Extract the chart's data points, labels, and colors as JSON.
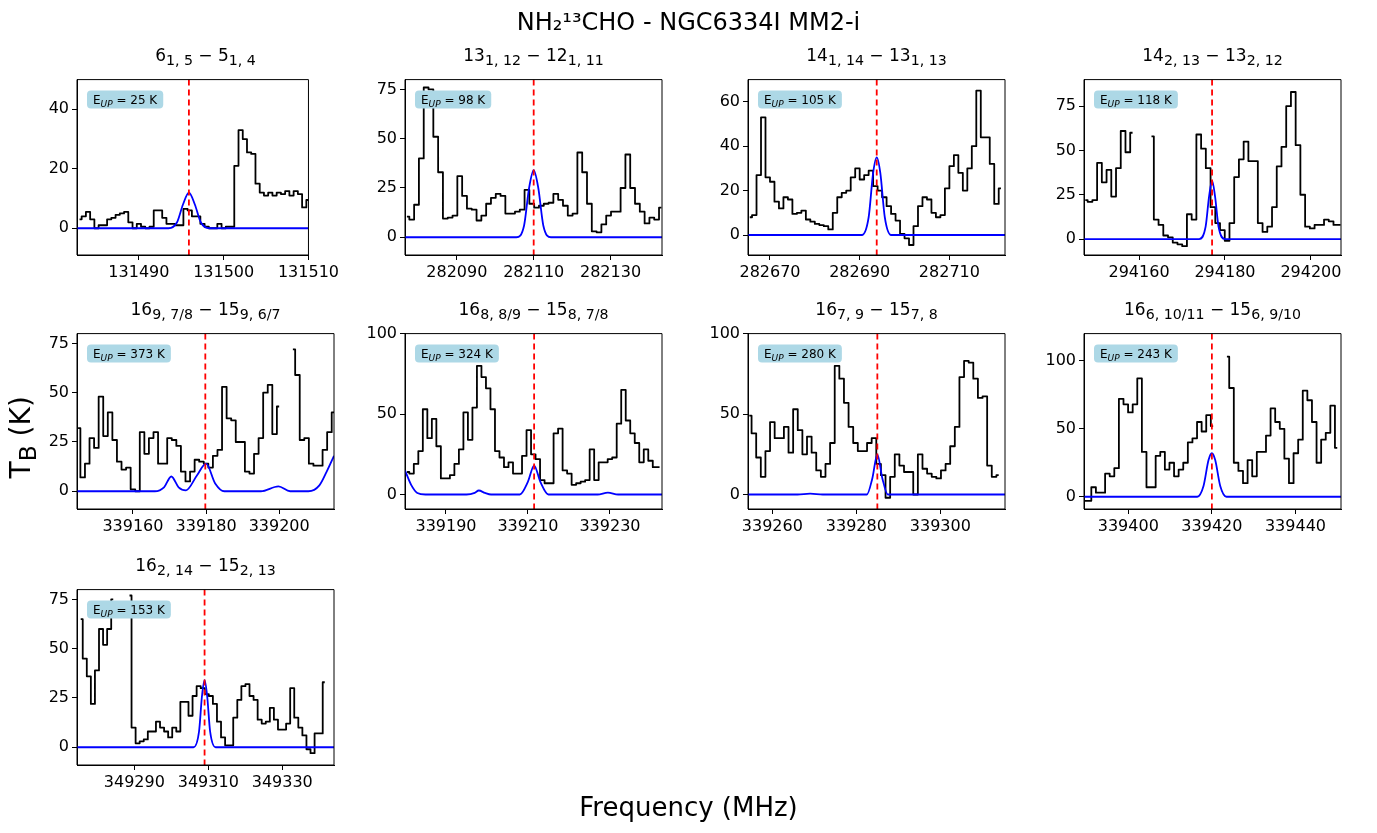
{
  "chart_data": [
    {
      "type": "step",
      "title": "6$_{1, 5}$ − 5$_{1, 4}$",
      "annotations": [
        "E$_{UP}$ = 25 K"
      ],
      "xlim": [
        131482.7,
        131510
      ],
      "ylim": [
        -9,
        50
      ],
      "xticks": [
        131490,
        131500,
        131510
      ],
      "yticks": [
        0,
        20,
        40
      ],
      "ref_lines": [
        {
          "axis": "x",
          "value": 131495.9,
          "color": "#ff0000",
          "line_style": "dashed"
        }
      ],
      "series": [
        {
          "type": "step",
          "color": "#000000",
          "x": [
            131483,
            131483.5,
            131484,
            131484.5,
            131485,
            131485.5,
            131486,
            131486.5,
            131487,
            131487.5,
            131488,
            131488.5,
            131489,
            131489.5,
            131490,
            131490.5,
            131491,
            131491.5,
            131492,
            131492.5,
            131493,
            131493.5,
            131494,
            131494.5,
            131495,
            131495.5,
            131496,
            131496.5,
            131497,
            131497.5,
            131498,
            131498.5,
            131499,
            131499.5,
            131500,
            131500.5,
            131501,
            131501.5,
            131502,
            131502.5,
            131503,
            131503.5,
            131504,
            131504.5,
            131505,
            131505.5,
            131506,
            131506.5,
            131507,
            131507.5,
            131508,
            131508.5,
            131509,
            131509.5,
            131510
          ],
          "values": [
            3,
            4,
            5.5,
            3,
            0,
            1,
            1,
            3,
            3.5,
            4.5,
            5,
            5.5,
            2,
            0,
            1.5,
            0.5,
            0,
            0.5,
            6,
            6,
            3.5,
            1.5,
            1.5,
            1,
            1,
            6.5,
            6,
            4,
            4,
            1.5,
            0.5,
            0,
            0,
            1.5,
            0,
            0.5,
            0.5,
            21,
            33,
            30,
            25.5,
            25,
            15,
            12,
            11,
            12,
            11,
            12,
            11.5,
            12.5,
            11,
            12.5,
            11.5,
            7,
            9.5
          ]
        },
        {
          "type": "line",
          "color": "#0000ff",
          "x": [
            131482.7,
            131493.5,
            131494.5,
            131495.2,
            131495.9,
            131496.6,
            131497.3,
            131498.3,
            131510
          ],
          "values": [
            0,
            0,
            2,
            8,
            12,
            8,
            2,
            0,
            0
          ]
        }
      ]
    },
    {
      "type": "step",
      "title": "13$_{1, 12}$ − 12$_{1, 11}$",
      "annotations": [
        "E$_{UP}$ = 98 K"
      ],
      "xlim": [
        282076.5,
        282143.4
      ],
      "ylim": [
        -9,
        80
      ],
      "xticks": [
        282090,
        282110,
        282130
      ],
      "yticks": [
        0,
        25,
        50,
        75
      ],
      "ref_lines": [
        {
          "axis": "x",
          "value": 282110,
          "color": "#ff0000",
          "line_style": "dashed"
        }
      ],
      "series": [
        {
          "type": "step",
          "color": "#000000",
          "x": [
            282077,
            282078.25,
            282079.5,
            282080.75,
            282082,
            282083.25,
            282084.5,
            282085.75,
            282087,
            282088.25,
            282089.5,
            282090.75,
            282092,
            282093.25,
            282094.5,
            282095.75,
            282097,
            282098.25,
            282099.5,
            282100.75,
            282102,
            282103.25,
            282104.5,
            282105.75,
            282107,
            282108.25,
            282109.5,
            282110.75,
            282112,
            282113.25,
            282114.5,
            282115.75,
            282117,
            282118.25,
            282119.5,
            282120.75,
            282122,
            282123.25,
            282124.5,
            282125.75,
            282127,
            282128.25,
            282129.5,
            282130.75,
            282132,
            282133.25,
            282134.5,
            282135.75,
            282137,
            282138.25,
            282139.5,
            282140.75,
            282142,
            282143.25
          ],
          "values": [
            10.5,
            9,
            16.5,
            40,
            76,
            75,
            51,
            33,
            9.5,
            10,
            11,
            31,
            21,
            14.5,
            14,
            8.5,
            11,
            17,
            20,
            22,
            21,
            12,
            12,
            13,
            14,
            24,
            17,
            15,
            16,
            17,
            17.5,
            22,
            19,
            16,
            11,
            12,
            43,
            33,
            17,
            3,
            2.5,
            6.5,
            11,
            13,
            13,
            25,
            42,
            25,
            17,
            13,
            7,
            10,
            9,
            15
          ]
        },
        {
          "type": "line",
          "color": "#0000ff",
          "x": [
            282076.5,
            282105.5,
            282107.5,
            282108.8,
            282110,
            282111.2,
            282112.5,
            282114.5,
            282143.4
          ],
          "values": [
            0,
            0,
            6,
            25,
            34,
            25,
            6,
            0,
            0
          ]
        }
      ]
    },
    {
      "type": "step",
      "title": "14$_{1, 14}$ − 13$_{1, 13}$",
      "annotations": [
        "E$_{UP}$ = 105 K"
      ],
      "xlim": [
        282665.1,
        282722.4
      ],
      "ylim": [
        -9,
        70
      ],
      "xticks": [
        282670,
        282690,
        282710
      ],
      "yticks": [
        0,
        20,
        40,
        60
      ],
      "ref_lines": [
        {
          "axis": "x",
          "value": 282693.8,
          "color": "#ff0000",
          "line_style": "dashed"
        }
      ],
      "series": [
        {
          "type": "step",
          "color": "#000000",
          "x": [
            282665.5,
            282666.5,
            282667.5,
            282668.5,
            282669.5,
            282670.5,
            282671.5,
            282672.5,
            282673.5,
            282674.5,
            282675.5,
            282676.5,
            282677.5,
            282678.5,
            282679.5,
            282680.5,
            282681.5,
            282682.5,
            282683.5,
            282684.5,
            282685.5,
            282686.5,
            282687.5,
            282688.5,
            282689.5,
            282690.5,
            282691.5,
            282692.5,
            282693.5,
            282694.5,
            282695.5,
            282696.5,
            282697.5,
            282698.5,
            282699.5,
            282700.5,
            282701.5,
            282702.5,
            282703.5,
            282704.5,
            282705.5,
            282706.5,
            282707.5,
            282708.5,
            282709.5,
            282710.5,
            282711.5,
            282712.5,
            282713.5,
            282714.5,
            282715.5,
            282716.5,
            282717.5,
            282718.5,
            282719.5,
            282720.5,
            282721.5
          ],
          "values": [
            8,
            9,
            27,
            53,
            26,
            24,
            15,
            12,
            17,
            16,
            9.5,
            10,
            11,
            7,
            6,
            5,
            4.5,
            4,
            2.5,
            10,
            17,
            19,
            20,
            26,
            30,
            25,
            27,
            29,
            22,
            20,
            17,
            13,
            9.5,
            6.5,
            0.5,
            -1.5,
            -4.5,
            4,
            13,
            17,
            16,
            10,
            8,
            9,
            21,
            31,
            36,
            28,
            20,
            30,
            40,
            65,
            44,
            44,
            32,
            14,
            21
          ]
        },
        {
          "type": "line",
          "color": "#0000ff",
          "x": [
            282665.1,
            282690.5,
            282692,
            282693,
            282693.8,
            282694.6,
            282695.6,
            282697,
            282722.4
          ],
          "values": [
            0,
            0,
            8,
            28,
            35,
            28,
            8,
            0,
            0
          ]
        }
      ]
    },
    {
      "type": "step",
      "title": "14$_{2, 13}$ − 13$_{2, 12}$",
      "annotations": [
        "E$_{UP}$ = 118 K"
      ],
      "xlim": [
        294147.2,
        294207
      ],
      "ylim": [
        -9,
        90
      ],
      "xticks": [
        294160,
        294180,
        294200
      ],
      "yticks": [
        0,
        25,
        50,
        75
      ],
      "ref_lines": [
        {
          "axis": "x",
          "value": 294177,
          "color": "#ff0000",
          "line_style": "dashed"
        }
      ],
      "series": [
        {
          "type": "step",
          "color": "#000000",
          "x": [
            294147.5,
            294148.6,
            294149.7,
            294150.8,
            294151.9,
            294153.0,
            294154.1,
            294155.2,
            294156.3,
            294157.4,
            294158.5,
            294159.6,
            294160.7,
            294161.8,
            294162.9,
            294164.0,
            294165.1,
            294166.2,
            294167.3,
            294168.4,
            294169.5,
            294170.6,
            294171.7,
            294172.8,
            294173.9,
            294175.0,
            294176.1,
            294177.2,
            294178.3,
            294179.4,
            294180.5,
            294181.6,
            294182.7,
            294183.8,
            294184.9,
            294186.0,
            294187.1,
            294188.2,
            294189.3,
            294190.4,
            294191.5,
            294192.6,
            294193.7,
            294194.8,
            294195.9,
            294197.0,
            294198.1,
            294199.2,
            294200.3,
            294201.4,
            294202.5,
            294203.6,
            294204.7,
            294205.8,
            294206.9
          ],
          "values": [
            22,
            21,
            22,
            43,
            32,
            39,
            24,
            40,
            61,
            49,
            60,
            null,
            null,
            null,
            58,
            11,
            8,
            2,
            1,
            -2,
            -3,
            -4,
            14,
            11,
            59,
            51,
            40,
            18,
            9,
            5,
            -1,
            9,
            35,
            45,
            55,
            44,
            44,
            9,
            4,
            7,
            18,
            41,
            52,
            75,
            83,
            53,
            25,
            7,
            6,
            8,
            8,
            11,
            10,
            8,
            8
          ]
        },
        {
          "type": "line",
          "color": "#0000ff",
          "x": [
            294147.2,
            294174,
            294175.5,
            294176.3,
            294177,
            294177.7,
            294178.5,
            294180,
            294207
          ],
          "values": [
            0,
            0,
            7,
            24,
            33,
            24,
            7,
            0,
            0
          ]
        }
      ]
    },
    {
      "type": "step",
      "title": "16$_{9, 7/8}$ − 15$_{9, 6/7}$",
      "annotations": [
        "E$_{UP}$ = 373 K"
      ],
      "xlim": [
        339144.7,
        339215
      ],
      "ylim": [
        -9,
        80
      ],
      "xticks": [
        339160,
        339180,
        339200
      ],
      "yticks": [
        0,
        25,
        50,
        75
      ],
      "ref_lines": [
        {
          "axis": "x",
          "value": 339179.8,
          "color": "#ff0000",
          "line_style": "dashed"
        }
      ],
      "series": [
        {
          "type": "step",
          "color": "#000000",
          "x": [
            339145,
            339146.25,
            339147.5,
            339148.75,
            339150,
            339151.25,
            339152.5,
            339153.75,
            339155,
            339156.25,
            339157.5,
            339158.75,
            339160,
            339161.25,
            339162.5,
            339163.75,
            339165,
            339166.25,
            339167.5,
            339168.75,
            339170,
            339171.25,
            339172.5,
            339173.75,
            339175,
            339176.25,
            339177.5,
            339178.75,
            339180,
            339181.25,
            339182.5,
            339183.75,
            339185,
            339186.25,
            339187.5,
            339188.75,
            339190,
            339191.25,
            339192.5,
            339193.75,
            339195,
            339196.25,
            339197.5,
            339198.75,
            339200,
            339201.25,
            339202.5,
            339203.75,
            339205,
            339206.25,
            339207.5,
            339208.75,
            339210,
            339211.25,
            339212.5,
            339213.75,
            339215
          ],
          "values": [
            32,
            7,
            14,
            27,
            22,
            48,
            28,
            40,
            26,
            15,
            11,
            12,
            1,
            0,
            30,
            19,
            27,
            30,
            14,
            14,
            27,
            26,
            23,
            10,
            5,
            10,
            16,
            15,
            14,
            12,
            18,
            21,
            53,
            37,
            36,
            25,
            25,
            10,
            9,
            19,
            27,
            50,
            54,
            29,
            43,
            null,
            null,
            72,
            59,
            26,
            27,
            14,
            13,
            13,
            21,
            30,
            40
          ]
        },
        {
          "type": "line",
          "color": "#0000ff",
          "x": [
            339144.7,
            339166,
            339168.5,
            339170.5,
            339172.5,
            339174.5,
            339177.5,
            339180,
            339182.5,
            339185,
            339195,
            339199.8,
            339203,
            339208,
            339211,
            339213,
            339215
          ],
          "values": [
            0,
            0,
            2,
            7.5,
            2,
            0.5,
            8,
            14,
            4,
            0,
            0,
            2.5,
            0,
            0,
            3,
            10,
            18
          ]
        }
      ]
    },
    {
      "type": "step",
      "title": "16$_{8, 8/9}$ − 15$_{8, 7/8}$",
      "annotations": [
        "E$_{UP}$ = 324 K"
      ],
      "xlim": [
        339180,
        339242.7
      ],
      "ylim": [
        -9,
        100
      ],
      "xticks": [
        339190,
        339210,
        339230
      ],
      "yticks": [
        0,
        50,
        100
      ],
      "ref_lines": [
        {
          "axis": "x",
          "value": 339211.5,
          "color": "#ff0000",
          "line_style": "dashed"
        }
      ],
      "series": [
        {
          "type": "step",
          "color": "#000000",
          "x": [
            339180.5,
            339181.6,
            339182.7,
            339183.8,
            339184.9,
            339186.0,
            339187.1,
            339188.2,
            339189.3,
            339190.4,
            339191.5,
            339192.6,
            339193.7,
            339194.8,
            339195.9,
            339197.0,
            339198.1,
            339199.2,
            339200.3,
            339201.4,
            339202.5,
            339203.6,
            339204.7,
            339205.8,
            339206.9,
            339208.0,
            339209.1,
            339210.2,
            339211.3,
            339212.4,
            339213.5,
            339214.6,
            339215.7,
            339216.8,
            339217.9,
            339219.0,
            339220.1,
            339221.2,
            339222.3,
            339223.4,
            339224.5,
            339225.6,
            339226.7,
            339227.8,
            339228.9,
            339230.0,
            339231.1,
            339232.2,
            339233.3,
            339234.4,
            339235.5,
            339236.6,
            339237.7,
            339238.8,
            339239.9,
            339241.0,
            339242.1
          ],
          "values": [
            14,
            13,
            19,
            27,
            53,
            35,
            47,
            30,
            10,
            10,
            12,
            19,
            28,
            51,
            34,
            54,
            80,
            73,
            66,
            53,
            27,
            23,
            17,
            20,
            13,
            13,
            24,
            40,
            25,
            22,
            9,
            7,
            7,
            38,
            41,
            15,
            13,
            6,
            7,
            8,
            9,
            28,
            9,
            20,
            20,
            22,
            23,
            44,
            65,
            46,
            38,
            32,
            20,
            28,
            21,
            17,
            17
          ]
        },
        {
          "type": "line",
          "color": "#0000ff",
          "x": [
            339180,
            339181.5,
            339183,
            339185,
            339195,
            339197,
            339198,
            339199.5,
            339201,
            339208,
            339210,
            339211.5,
            339213,
            339215,
            339227,
            339229.5,
            339232,
            339242.7
          ],
          "values": [
            15,
            6,
            1,
            0,
            0,
            1,
            2.5,
            1,
            0,
            0,
            8,
            18,
            8,
            0,
            0,
            1.2,
            0,
            0
          ]
        }
      ]
    },
    {
      "type": "step",
      "title": "16$_{7, 9}$ − 15$_{7, 8}$",
      "annotations": [
        "E$_{UP}$ = 280 K"
      ],
      "xlim": [
        339254.2,
        339315.4
      ],
      "ylim": [
        -9,
        100
      ],
      "xticks": [
        339260,
        339280,
        339300
      ],
      "yticks": [
        0,
        50,
        100
      ],
      "ref_lines": [
        {
          "axis": "x",
          "value": 339285,
          "color": "#ff0000",
          "line_style": "dashed"
        }
      ],
      "series": [
        {
          "type": "step",
          "color": "#000000",
          "x": [
            339254.5,
            339255.6,
            339256.7,
            339257.8,
            339258.9,
            339260.0,
            339261.1,
            339262.2,
            339263.3,
            339264.4,
            339265.5,
            339266.6,
            339267.7,
            339268.8,
            339269.9,
            339271.0,
            339272.1,
            339273.2,
            339274.3,
            339275.4,
            339276.5,
            339277.6,
            339278.7,
            339279.8,
            339280.9,
            339282.0,
            339283.1,
            339284.2,
            339285.3,
            339286.4,
            339287.5,
            339288.6,
            339289.7,
            339290.8,
            339291.9,
            339293.0,
            339294.1,
            339295.2,
            339296.3,
            339297.4,
            339298.5,
            339299.6,
            339300.7,
            339301.8,
            339302.9,
            339304.0,
            339305.1,
            339306.2,
            339307.3,
            339308.4,
            339309.5,
            339310.6,
            339311.7,
            339312.8,
            339313.9
          ],
          "values": [
            49,
            38,
            23,
            11,
            27,
            45,
            35,
            35,
            42,
            26,
            53,
            40,
            25,
            36,
            26,
            15,
            11,
            19,
            32,
            80,
            72,
            57,
            42,
            32,
            27,
            27,
            32,
            35,
            19,
            12,
            -2,
            11,
            25,
            18,
            14,
            14,
            0,
            25,
            16,
            13,
            11,
            10,
            15,
            19,
            30,
            42,
            73,
            83,
            82,
            72,
            60,
            61,
            18,
            11,
            12
          ]
        },
        {
          "type": "line",
          "color": "#0000ff",
          "x": [
            339254.2,
            339266,
            339269,
            339272,
            339282.5,
            339283.8,
            339285,
            339286.2,
            339287.5,
            339315.4
          ],
          "values": [
            0,
            0,
            0.5,
            0,
            0,
            10,
            25,
            10,
            0,
            0
          ]
        }
      ]
    },
    {
      "type": "step",
      "title": "16$_{6, 10/11}$ − 15$_{6, 9/10}$",
      "annotations": [
        "E$_{UP}$ = 243 K"
      ],
      "xlim": [
        339389.4,
        339450.9
      ],
      "ylim": [
        -9,
        120
      ],
      "xticks": [
        339400,
        339420,
        339440
      ],
      "yticks": [
        0,
        50,
        100
      ],
      "ref_lines": [
        {
          "axis": "x",
          "value": 339420,
          "color": "#ff0000",
          "line_style": "dashed"
        }
      ],
      "series": [
        {
          "type": "step",
          "color": "#000000",
          "x": [
            339389.5,
            339390.6,
            339391.7,
            339392.8,
            339393.9,
            339395.0,
            339396.1,
            339397.2,
            339398.3,
            339399.4,
            339400.5,
            339401.6,
            339402.7,
            339403.8,
            339404.9,
            339406.0,
            339407.1,
            339408.2,
            339409.3,
            339410.4,
            339411.5,
            339412.6,
            339413.7,
            339414.8,
            339415.9,
            339417.0,
            339418.1,
            339419.2,
            339420.3,
            339421.4,
            339422.5,
            339423.6,
            339424.7,
            339425.8,
            339426.9,
            339428.0,
            339429.1,
            339430.2,
            339431.3,
            339432.4,
            339433.5,
            339434.6,
            339435.7,
            339436.8,
            339437.9,
            339439.0,
            339440.1,
            339441.2,
            339442.3,
            339443.4,
            339444.5,
            339445.6,
            339446.7,
            339447.8,
            339448.9,
            339450.0
          ],
          "values": [
            -3,
            -3,
            7,
            3,
            3,
            17,
            15,
            21,
            72,
            68,
            62,
            68,
            87,
            33,
            7,
            7,
            30,
            33,
            20,
            25,
            15,
            20,
            25,
            40,
            43,
            55,
            48,
            60,
            52,
            null,
            null,
            103,
            80,
            25,
            19,
            10,
            27,
            15,
            33,
            33,
            45,
            65,
            55,
            50,
            28,
            10,
            32,
            42,
            78,
            71,
            55,
            25,
            42,
            47,
            67,
            36
          ]
        },
        {
          "type": "line",
          "color": "#0000ff",
          "x": [
            339389.4,
            339416.5,
            339418,
            339419.2,
            339420,
            339420.8,
            339422,
            339423.5,
            339450.9
          ],
          "values": [
            0,
            0,
            8,
            27,
            32,
            27,
            8,
            0,
            0
          ]
        }
      ]
    },
    {
      "type": "step",
      "title": "16$_{2, 14}$ − 15$_{2, 13}$",
      "annotations": [
        "E$_{UP}$ = 153 K"
      ],
      "xlim": [
        349274.5,
        349344
      ],
      "ylim": [
        -9,
        80
      ],
      "xticks": [
        349290,
        349310,
        349330
      ],
      "yticks": [
        0,
        25,
        50,
        75
      ],
      "ref_lines": [
        {
          "axis": "x",
          "value": 349309,
          "color": "#ff0000",
          "line_style": "dashed"
        }
      ],
      "series": [
        {
          "type": "step",
          "color": "#000000",
          "x": [
            349275.5,
            349276.6,
            349277.7,
            349278.8,
            349279.9,
            349281.0,
            349282.1,
            349283.2,
            349284.3,
            349285.4,
            349286.5,
            349287.6,
            349288.7,
            349289.8,
            349290.9,
            349292.0,
            349293.1,
            349294.2,
            349295.3,
            349296.4,
            349297.5,
            349298.6,
            349299.7,
            349300.8,
            349301.9,
            349303.0,
            349304.1,
            349305.2,
            349306.3,
            349307.4,
            349308.5,
            349309.6,
            349310.7,
            349311.8,
            349312.9,
            349314.0,
            349315.1,
            349316.2,
            349317.3,
            349318.4,
            349319.5,
            349320.6,
            349321.7,
            349322.8,
            349323.9,
            349325.0,
            349326.1,
            349327.2,
            349328.3,
            349329.4,
            349330.5,
            349331.6,
            349332.7,
            349333.8,
            349334.9,
            349336.0,
            349337.1,
            349338.2,
            349339.3,
            349340.4,
            349341.5
          ],
          "values": [
            65,
            45,
            36,
            22,
            39,
            60,
            52,
            60,
            75,
            null,
            null,
            null,
            77,
            10,
            2,
            3,
            4,
            8,
            8,
            13,
            10,
            8,
            5,
            10,
            8,
            23,
            23,
            16,
            26,
            31,
            30,
            27,
            26,
            22,
            13,
            5,
            1,
            1,
            15,
            24,
            31,
            32,
            26,
            24,
            14,
            12,
            13,
            20,
            14,
            9,
            9,
            12,
            30,
            15,
            10,
            6,
            -1,
            -3,
            7,
            7,
            33
          ]
        },
        {
          "type": "line",
          "color": "#0000ff",
          "x": [
            349274.5,
            349306,
            349307.5,
            349308.3,
            349309,
            349309.7,
            349310.5,
            349312,
            349344
          ],
          "values": [
            0,
            0,
            8,
            26,
            34,
            26,
            8,
            0,
            0
          ]
        }
      ]
    },
    {
      "type": "other",
      "title": "NH₂¹³CHO - NGC6334I MM2-i",
      "xlabel": "Frequency (MHz)",
      "ylabel": "T$_{B}$ (K)"
    }
  ]
}
